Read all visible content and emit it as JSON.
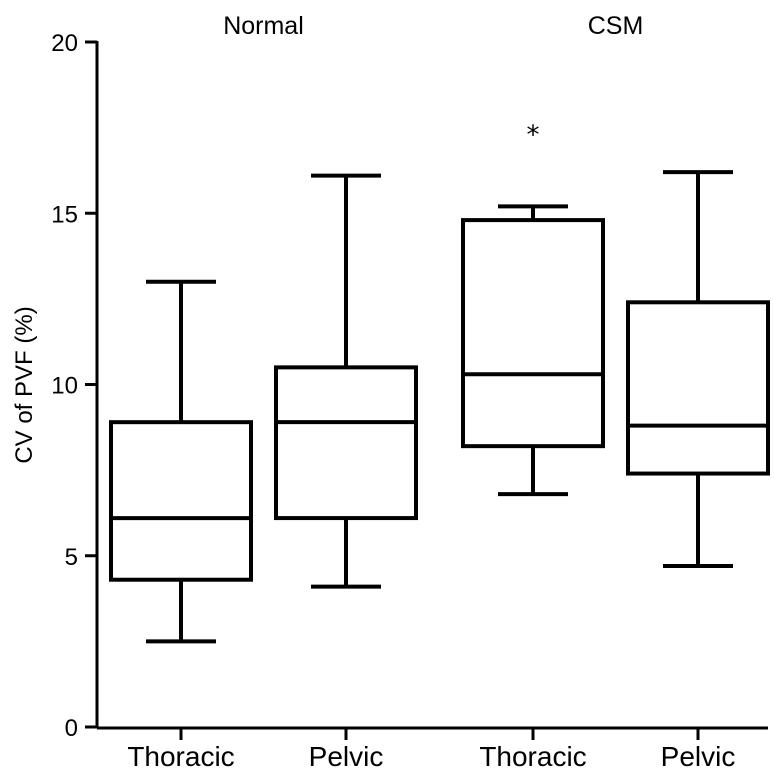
{
  "chart_data": {
    "type": "box",
    "ylabel": "CV of PVF (%)",
    "ylim": [
      0,
      20
    ],
    "yticks": [
      0,
      5,
      10,
      15,
      20
    ],
    "groups": [
      {
        "label": "Normal",
        "span": [
          0,
          1
        ]
      },
      {
        "label": "CSM",
        "span": [
          2,
          3
        ]
      }
    ],
    "categories": [
      "Thoracic",
      "Pelvic",
      "Thoracic",
      "Pelvic"
    ],
    "boxes": [
      {
        "min": 2.5,
        "q1": 4.3,
        "median": 6.1,
        "q3": 8.9,
        "max": 13.0,
        "outliers": []
      },
      {
        "min": 4.1,
        "q1": 6.1,
        "median": 8.9,
        "q3": 10.5,
        "max": 16.1,
        "outliers": []
      },
      {
        "min": 6.8,
        "q1": 8.2,
        "median": 10.3,
        "q3": 14.8,
        "max": 15.2,
        "outliers": [
          17.5
        ]
      },
      {
        "min": 4.7,
        "q1": 7.4,
        "median": 8.8,
        "q3": 12.4,
        "max": 16.2,
        "outliers": []
      }
    ],
    "outlier_marker": "*",
    "grid": false,
    "legend": "none"
  }
}
